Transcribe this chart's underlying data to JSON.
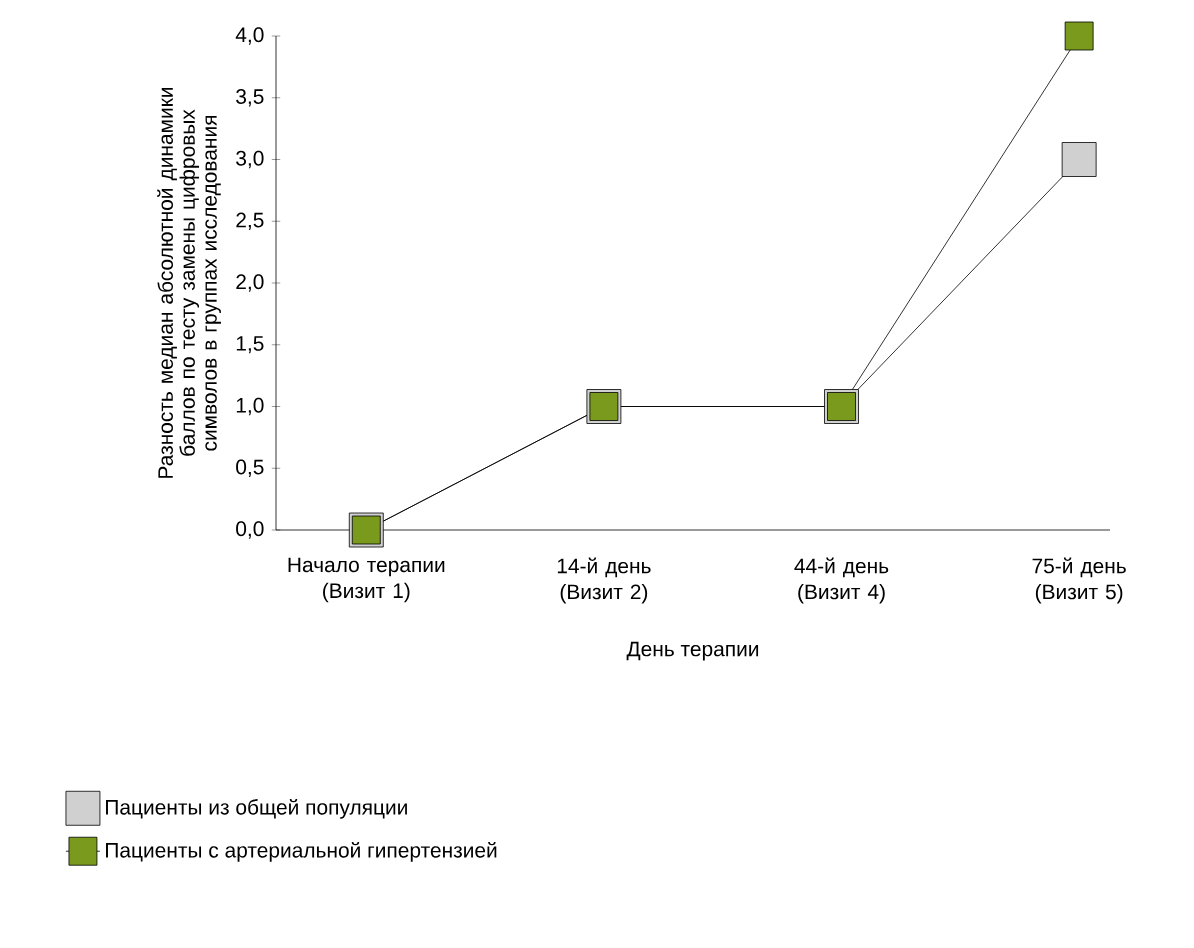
{
  "chart_data": {
    "type": "line",
    "xlabel": "День терапии",
    "ylabel": "Разность медиан абсолютной динамики баллов по тесту замены цифровых символов в группах исследования",
    "categories": [
      "Начало терапии (Визит 1)",
      "14-й день (Визит 2)",
      "44-й день (Визит 4)",
      "75-й день (Визит 5)"
    ],
    "series": [
      {
        "name": "Пациенты из общей популяции",
        "color": "#d0d0d0",
        "values": [
          0,
          1,
          1,
          3
        ]
      },
      {
        "name": "Пациенты с артериальной гипертензией",
        "color": "#7a9a1e",
        "values": [
          0,
          1,
          1,
          4
        ]
      }
    ],
    "ylim": [
      0,
      4
    ],
    "yticks": [
      {
        "value": 0,
        "label": "0,0"
      },
      {
        "value": 0.5,
        "label": "0,5"
      },
      {
        "value": 1,
        "label": "1,0"
      },
      {
        "value": 1.5,
        "label": "1,5"
      },
      {
        "value": 2,
        "label": "2,0"
      },
      {
        "value": 2.5,
        "label": "2,5"
      },
      {
        "value": 3,
        "label": "3,0"
      },
      {
        "value": 3.5,
        "label": "3,5"
      },
      {
        "value": 4,
        "label": "4,0"
      }
    ],
    "marker": "square",
    "line_style": "solid",
    "grid": false,
    "legend": "bottom"
  }
}
